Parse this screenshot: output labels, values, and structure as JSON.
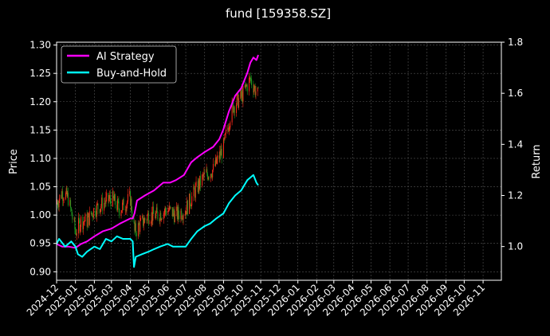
{
  "title": "fund [159358.SZ]",
  "colors": {
    "background": "#000000",
    "ai_strategy": "#ff00ff",
    "buy_and_hold": "#00ffff",
    "candle_up": "#ff2a1a",
    "candle_down": "#1f9a1f",
    "grid": "#555555",
    "text": "#ffffff"
  },
  "chart_data": {
    "type": "line",
    "title": "fund [159358.SZ]",
    "ylabel_left": "Price",
    "ylabel_right": "Return",
    "xlabel": "",
    "x_ticks": [
      "2024-12",
      "2025-01",
      "2025-02",
      "2025-03",
      "2025-04",
      "2025-05",
      "2025-06",
      "2025-07",
      "2025-08",
      "2025-09",
      "2025-10",
      "2025-11",
      "2025-12",
      "2026-01",
      "2026-02",
      "2026-03",
      "2026-04",
      "2026-05",
      "2026-06",
      "2026-07",
      "2026-08",
      "2026-09",
      "2026-10",
      "2026-11"
    ],
    "xlim": [
      "2024-12-01",
      "2026-12-01"
    ],
    "ylim_left": [
      0.885,
      1.305
    ],
    "ylim_right": [
      0.868,
      1.8
    ],
    "y_ticks_left": [
      "0.90",
      "0.95",
      "1.00",
      "1.05",
      "1.10",
      "1.15",
      "1.20",
      "1.25",
      "1.30"
    ],
    "y_ticks_right": [
      "1.0",
      "1.2",
      "1.4",
      "1.6",
      "1.8"
    ],
    "grid": true,
    "legend_position": "top-left",
    "legend": [
      "AI Strategy",
      "Buy-and-Hold"
    ],
    "series": [
      {
        "name": "AI Strategy",
        "axis": "right",
        "color": "#ff00ff",
        "x": [
          "2024-12-01",
          "2024-12-10",
          "2024-12-20",
          "2025-01-01",
          "2025-01-10",
          "2025-01-20",
          "2025-02-01",
          "2025-02-15",
          "2025-03-01",
          "2025-03-15",
          "2025-04-01",
          "2025-04-05",
          "2025-04-08",
          "2025-04-12",
          "2025-04-25",
          "2025-05-10",
          "2025-05-25",
          "2025-06-05",
          "2025-06-15",
          "2025-06-28",
          "2025-07-10",
          "2025-07-20",
          "2025-08-01",
          "2025-08-15",
          "2025-08-25",
          "2025-09-01",
          "2025-09-10",
          "2025-09-20",
          "2025-09-30",
          "2025-10-10",
          "2025-10-15",
          "2025-10-20",
          "2025-10-25",
          "2025-10-28"
        ],
        "values": [
          1.01,
          1.0,
          1.0,
          0.995,
          1.01,
          1.02,
          1.04,
          1.06,
          1.07,
          1.09,
          1.11,
          1.11,
          1.13,
          1.18,
          1.2,
          1.22,
          1.25,
          1.25,
          1.26,
          1.28,
          1.33,
          1.35,
          1.37,
          1.39,
          1.42,
          1.46,
          1.53,
          1.59,
          1.62,
          1.68,
          1.72,
          1.74,
          1.73,
          1.75
        ]
      },
      {
        "name": "Buy-and-Hold",
        "axis": "right",
        "color": "#00ffff",
        "x": [
          "2024-12-01",
          "2024-12-05",
          "2024-12-15",
          "2024-12-25",
          "2025-01-01",
          "2025-01-05",
          "2025-01-12",
          "2025-01-20",
          "2025-02-01",
          "2025-02-10",
          "2025-02-20",
          "2025-03-01",
          "2025-03-10",
          "2025-03-20",
          "2025-04-01",
          "2025-04-05",
          "2025-04-07",
          "2025-04-10",
          "2025-04-20",
          "2025-05-01",
          "2025-05-10",
          "2025-05-20",
          "2025-06-01",
          "2025-06-10",
          "2025-06-20",
          "2025-07-01",
          "2025-07-10",
          "2025-07-20",
          "2025-08-01",
          "2025-08-10",
          "2025-08-20",
          "2025-09-01",
          "2025-09-10",
          "2025-09-20",
          "2025-09-30",
          "2025-10-10",
          "2025-10-15",
          "2025-10-20",
          "2025-10-25",
          "2025-10-28"
        ],
        "values": [
          1.01,
          1.03,
          1.0,
          1.02,
          1.0,
          0.97,
          0.96,
          0.98,
          1.0,
          0.99,
          1.03,
          1.02,
          1.04,
          1.03,
          1.03,
          1.02,
          0.92,
          0.96,
          0.97,
          0.98,
          0.99,
          1.0,
          1.01,
          1.0,
          1.0,
          1.0,
          1.03,
          1.06,
          1.08,
          1.09,
          1.11,
          1.13,
          1.17,
          1.2,
          1.22,
          1.26,
          1.27,
          1.28,
          1.25,
          1.24
        ]
      }
    ],
    "price_series": {
      "name": "Price",
      "axis": "left",
      "type": "candlestick",
      "x": [
        "2024-12-01",
        "2024-12-10",
        "2024-12-20",
        "2025-01-01",
        "2025-01-10",
        "2025-01-20",
        "2025-02-01",
        "2025-02-15",
        "2025-03-01",
        "2025-03-15",
        "2025-04-01",
        "2025-04-08",
        "2025-04-15",
        "2025-05-01",
        "2025-05-15",
        "2025-06-01",
        "2025-06-15",
        "2025-07-01",
        "2025-07-15",
        "2025-08-01",
        "2025-08-15",
        "2025-09-01",
        "2025-09-15",
        "2025-10-01",
        "2025-10-15",
        "2025-10-28"
      ],
      "values": [
        1.02,
        1.04,
        1.03,
        0.97,
        0.99,
        0.99,
        1.01,
        1.02,
        1.03,
        1.01,
        1.03,
        0.97,
        0.98,
        1.0,
        1.0,
        1.01,
        1.0,
        1.01,
        1.04,
        1.07,
        1.08,
        1.12,
        1.19,
        1.21,
        1.24,
        1.21
      ]
    }
  }
}
